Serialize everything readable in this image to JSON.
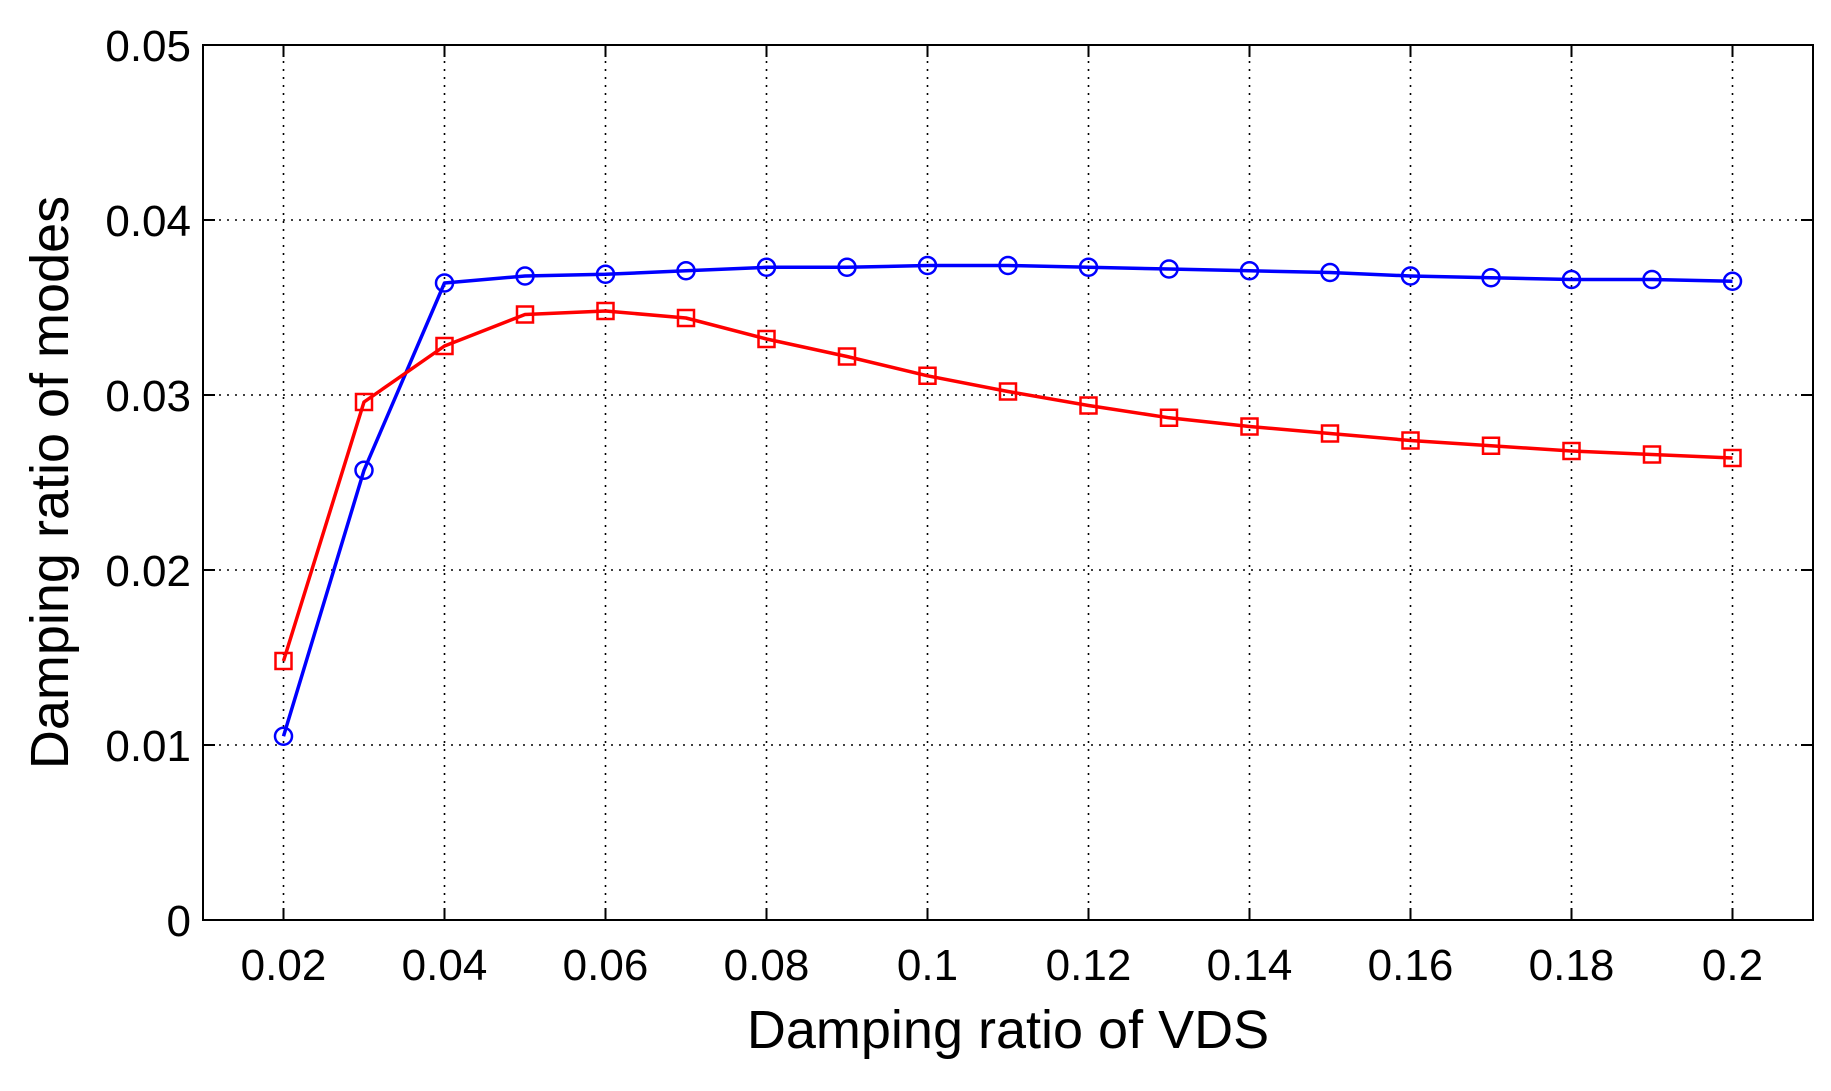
{
  "chart_data": {
    "type": "line",
    "title": "",
    "xlabel": "Damping ratio of VDS",
    "ylabel": "Damping ratio of modes",
    "xlim": [
      0.01,
      0.21
    ],
    "ylim": [
      0,
      0.05
    ],
    "grid": true,
    "x_ticks": [
      {
        "value": 0.02,
        "label": "0.02"
      },
      {
        "value": 0.04,
        "label": "0.04"
      },
      {
        "value": 0.06,
        "label": "0.06"
      },
      {
        "value": 0.08,
        "label": "0.08"
      },
      {
        "value": 0.1,
        "label": "0.1"
      },
      {
        "value": 0.12,
        "label": "0.12"
      },
      {
        "value": 0.14,
        "label": "0.14"
      },
      {
        "value": 0.16,
        "label": "0.16"
      },
      {
        "value": 0.18,
        "label": "0.18"
      },
      {
        "value": 0.2,
        "label": "0.2"
      }
    ],
    "y_ticks": [
      {
        "value": 0,
        "label": "0"
      },
      {
        "value": 0.01,
        "label": "0.01"
      },
      {
        "value": 0.02,
        "label": "0.02"
      },
      {
        "value": 0.03,
        "label": "0.03"
      },
      {
        "value": 0.04,
        "label": "0.04"
      },
      {
        "value": 0.05,
        "label": "0.05"
      }
    ],
    "x": [
      0.02,
      0.03,
      0.04,
      0.05,
      0.06,
      0.07,
      0.08,
      0.09,
      0.1,
      0.11,
      0.12,
      0.13,
      0.14,
      0.15,
      0.16,
      0.17,
      0.18,
      0.19,
      0.2
    ],
    "series": [
      {
        "name": "circle-series",
        "color": "#0000ff",
        "marker": "circle",
        "values": [
          0.0105,
          0.0257,
          0.0364,
          0.0368,
          0.0369,
          0.0371,
          0.0373,
          0.0373,
          0.0374,
          0.0374,
          0.0373,
          0.0372,
          0.0371,
          0.037,
          0.0368,
          0.0367,
          0.0366,
          0.0366,
          0.0365
        ]
      },
      {
        "name": "square-series",
        "color": "#ff0000",
        "marker": "square",
        "values": [
          0.0148,
          0.0296,
          0.0328,
          0.0346,
          0.0348,
          0.0344,
          0.0332,
          0.0322,
          0.0311,
          0.0302,
          0.0294,
          0.0287,
          0.0282,
          0.0278,
          0.0274,
          0.0271,
          0.0268,
          0.0266,
          0.0264
        ]
      }
    ]
  }
}
